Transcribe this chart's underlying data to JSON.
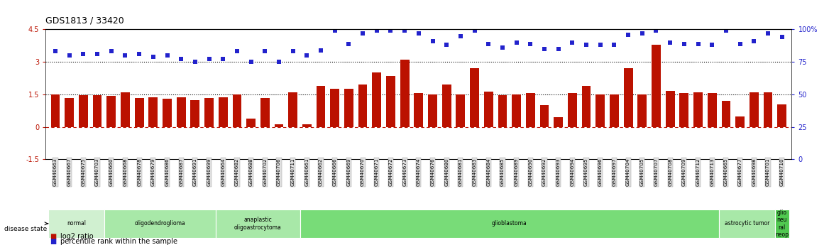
{
  "title": "GDS1813 / 33420",
  "samples": [
    "GSM40663",
    "GSM40667",
    "GSM40675",
    "GSM40703",
    "GSM40660",
    "GSM40668",
    "GSM40678",
    "GSM40679",
    "GSM40686",
    "GSM40687",
    "GSM40691",
    "GSM40699",
    "GSM40664",
    "GSM40682",
    "GSM40688",
    "GSM40702",
    "GSM40706",
    "GSM40711",
    "GSM40661",
    "GSM40662",
    "GSM40666",
    "GSM40669",
    "GSM40670",
    "GSM40671",
    "GSM40672",
    "GSM40673",
    "GSM40674",
    "GSM40676",
    "GSM40680",
    "GSM40681",
    "GSM40683",
    "GSM40684",
    "GSM40685",
    "GSM40689",
    "GSM40690",
    "GSM40692",
    "GSM40693",
    "GSM40694",
    "GSM40695",
    "GSM40696",
    "GSM40697",
    "GSM40704",
    "GSM40705",
    "GSM40707",
    "GSM40708",
    "GSM40709",
    "GSM40712",
    "GSM40713",
    "GSM40665",
    "GSM40677",
    "GSM40698",
    "GSM40701",
    "GSM40710"
  ],
  "log2_ratio": [
    1.48,
    1.33,
    1.45,
    1.47,
    1.42,
    1.58,
    1.33,
    1.37,
    1.3,
    1.37,
    1.23,
    1.34,
    1.37,
    1.48,
    0.37,
    1.33,
    0.1,
    1.58,
    0.1,
    1.9,
    1.75,
    1.75,
    1.95,
    2.5,
    2.35,
    3.1,
    1.55,
    1.5,
    1.95,
    1.5,
    2.7,
    1.63,
    1.45,
    1.5,
    1.55,
    1.0,
    0.45,
    1.55,
    1.9,
    1.5,
    1.5,
    2.7,
    1.5,
    3.8,
    1.65,
    1.55,
    1.58,
    1.55,
    1.2,
    0.48,
    1.58,
    1.6,
    1.05
  ],
  "percentile_pct": [
    83,
    80,
    81,
    81,
    83,
    80,
    81,
    79,
    80,
    77,
    75,
    77,
    77,
    83,
    75,
    83,
    75,
    83,
    80,
    84,
    99,
    89,
    97,
    99,
    99,
    99,
    97,
    91,
    88,
    95,
    99,
    89,
    86,
    90,
    89,
    85,
    85,
    90,
    88,
    88,
    88,
    96,
    97,
    99,
    90,
    89,
    89,
    88,
    99,
    89,
    91,
    97,
    94
  ],
  "groups": [
    {
      "label": "normal",
      "start": 0,
      "end": 4,
      "color": "#d0f0d0"
    },
    {
      "label": "oligodendroglioma",
      "start": 4,
      "end": 12,
      "color": "#a8e8a8"
    },
    {
      "label": "anaplastic\noligoastrocytoma",
      "start": 12,
      "end": 18,
      "color": "#a8e8a8"
    },
    {
      "label": "glioblastoma",
      "start": 18,
      "end": 48,
      "color": "#78dc78"
    },
    {
      "label": "astrocytic tumor",
      "start": 48,
      "end": 52,
      "color": "#a8e8a8"
    },
    {
      "label": "glio\nneu\nral\nneop",
      "start": 52,
      "end": 53,
      "color": "#50c850"
    }
  ],
  "bar_color": "#bb1100",
  "dot_color": "#2222cc",
  "ylim_left": [
    -1.5,
    4.5
  ],
  "ylim_right": [
    0,
    100
  ],
  "left_yticks": [
    -1.5,
    0.0,
    1.5,
    3.0,
    4.5
  ],
  "left_yticklabels": [
    "-1.5",
    "0",
    "1.5",
    "3",
    "4.5"
  ],
  "right_yticks": [
    0,
    25,
    50,
    75,
    100
  ],
  "right_yticklabels": [
    "0",
    "25",
    "50",
    "75",
    "100%"
  ]
}
